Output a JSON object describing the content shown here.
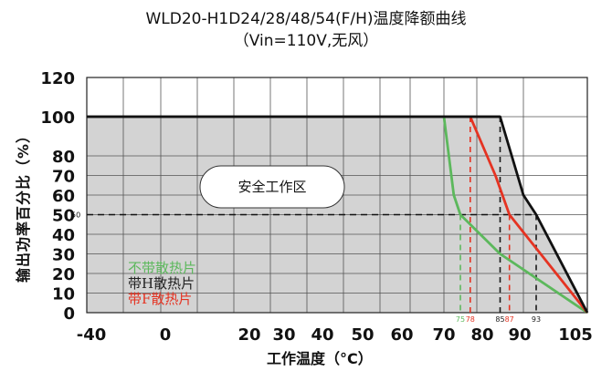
{
  "chart_data": {
    "type": "line",
    "title": "WLD20-H1D24/28/48/54(F/H)温度降额曲线",
    "subtitle": "（Vin=110V,无风）",
    "xlabel": "工作温度（°C）",
    "ylabel": "输出功率百分比（%）",
    "xlim": [
      -40,
      105
    ],
    "ylim": [
      0,
      120
    ],
    "xticks": [
      -40,
      0,
      20,
      30,
      40,
      50,
      60,
      70,
      80,
      90,
      105
    ],
    "yticks": [
      0,
      10,
      20,
      30,
      40,
      50,
      60,
      70,
      80,
      100,
      120
    ],
    "region_label": "安全工作区",
    "reference_line": {
      "y": 50,
      "label": "50"
    },
    "markers": [
      {
        "x": 75,
        "label": "75",
        "color": "#5cb85c"
      },
      {
        "x": 78,
        "label": "78",
        "color": "#e53322"
      },
      {
        "x": 85,
        "label": "85",
        "color": "#1a1a1a"
      },
      {
        "x": 87,
        "label": "87",
        "color": "#e53322"
      },
      {
        "x": 93,
        "label": "93",
        "color": "#1a1a1a"
      }
    ],
    "series": [
      {
        "name": "带H散热片",
        "color": "#111111",
        "x": [
          -40,
          85,
          90,
          93,
          105
        ],
        "y": [
          100,
          100,
          60,
          50,
          0
        ]
      },
      {
        "name": "带F散热片",
        "color": "#e53322",
        "x": [
          78,
          84,
          87,
          105
        ],
        "y": [
          100,
          70,
          50,
          0
        ]
      },
      {
        "name": "不带散热片",
        "color": "#5cb85c",
        "x": [
          70,
          73,
          75,
          85,
          105
        ],
        "y": [
          100,
          60,
          50,
          30,
          0
        ]
      }
    ],
    "legend_position": "bottom-left",
    "grid": true
  }
}
